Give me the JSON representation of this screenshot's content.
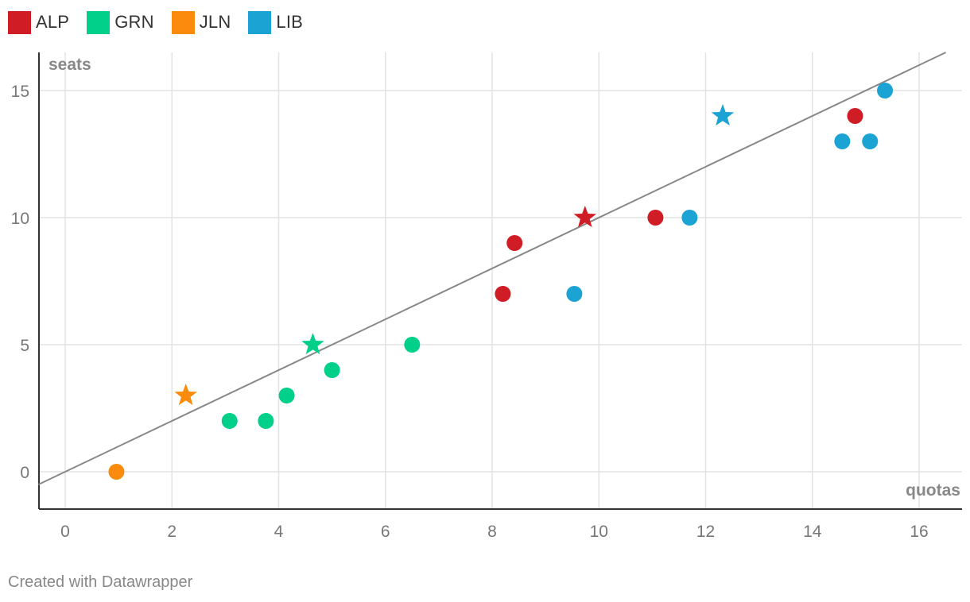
{
  "colors": {
    "ALP": "#d01c25",
    "GRN": "#00d08a",
    "JLN": "#fb8b0c",
    "LIB": "#1ba3d4",
    "reference_line": "#888888",
    "grid": "#e3e3e3",
    "axis": "#333333",
    "tick_text": "#777777",
    "axis_title_text": "#888888"
  },
  "legend": [
    {
      "name": "ALP",
      "color": "#d01c25"
    },
    {
      "name": "GRN",
      "color": "#00d08a"
    },
    {
      "name": "JLN",
      "color": "#fb8b0c"
    },
    {
      "name": "LIB",
      "color": "#1ba3d4"
    }
  ],
  "footer": {
    "credit": "Created with Datawrapper"
  },
  "chart_data": {
    "type": "scatter",
    "title": "",
    "xlabel": "quotas",
    "ylabel": "seats",
    "xlim": [
      -0.5,
      16.8
    ],
    "ylim": [
      -1.5,
      16.5
    ],
    "xticks": [
      0,
      2,
      4,
      6,
      8,
      10,
      12,
      14,
      16
    ],
    "yticks": [
      0,
      5,
      10,
      15
    ],
    "grid": true,
    "legend_position": "top-left",
    "reference_line": {
      "x": [
        -0.5,
        16.5
      ],
      "y": [
        -0.5,
        16.5
      ]
    },
    "series": [
      {
        "name": "ALP",
        "color": "#d01c25",
        "points": [
          {
            "x": 8.2,
            "y": 7,
            "marker": "circle"
          },
          {
            "x": 8.42,
            "y": 9,
            "marker": "circle"
          },
          {
            "x": 9.74,
            "y": 10,
            "marker": "star"
          },
          {
            "x": 11.06,
            "y": 10,
            "marker": "circle"
          },
          {
            "x": 14.8,
            "y": 14,
            "marker": "circle"
          }
        ]
      },
      {
        "name": "GRN",
        "color": "#00d08a",
        "points": [
          {
            "x": 3.08,
            "y": 2,
            "marker": "circle"
          },
          {
            "x": 3.76,
            "y": 2,
            "marker": "circle"
          },
          {
            "x": 4.15,
            "y": 3,
            "marker": "circle"
          },
          {
            "x": 4.64,
            "y": 5,
            "marker": "star"
          },
          {
            "x": 5.0,
            "y": 4,
            "marker": "circle"
          },
          {
            "x": 6.5,
            "y": 5,
            "marker": "circle"
          }
        ]
      },
      {
        "name": "JLN",
        "color": "#fb8b0c",
        "points": [
          {
            "x": 0.96,
            "y": 0,
            "marker": "circle"
          },
          {
            "x": 2.26,
            "y": 3,
            "marker": "star"
          }
        ]
      },
      {
        "name": "LIB",
        "color": "#1ba3d4",
        "points": [
          {
            "x": 9.54,
            "y": 7,
            "marker": "circle"
          },
          {
            "x": 11.7,
            "y": 10,
            "marker": "circle"
          },
          {
            "x": 12.32,
            "y": 14,
            "marker": "star"
          },
          {
            "x": 14.56,
            "y": 13,
            "marker": "circle"
          },
          {
            "x": 15.08,
            "y": 13,
            "marker": "circle"
          },
          {
            "x": 15.36,
            "y": 15,
            "marker": "circle"
          }
        ]
      }
    ]
  }
}
